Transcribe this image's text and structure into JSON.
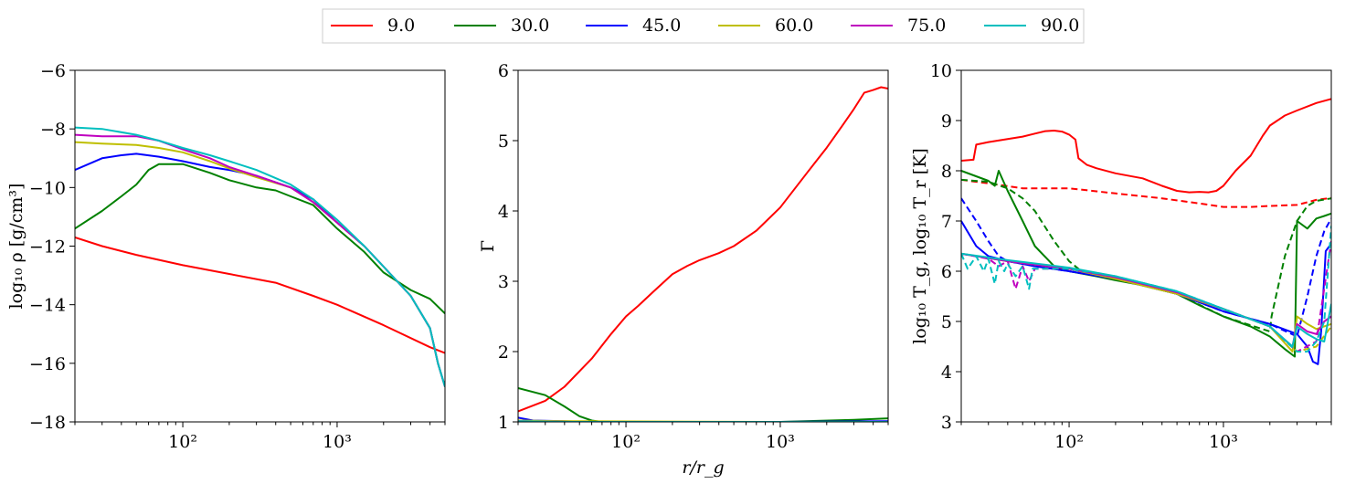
{
  "legend": {
    "placement": "top-center",
    "entries": [
      {
        "label": "9.0",
        "color": "#ff0000"
      },
      {
        "label": "30.0",
        "color": "#008000"
      },
      {
        "label": "45.0",
        "color": "#0000ff"
      },
      {
        "label": "60.0",
        "color": "#bfbf00"
      },
      {
        "label": "75.0",
        "color": "#bf00bf"
      },
      {
        "label": "90.0",
        "color": "#00bfbf"
      }
    ]
  },
  "chart_data": [
    {
      "type": "line",
      "xlabel": "",
      "ylabel": "log₁₀ ρ [g/cm³]",
      "xscale": "log",
      "xlim": [
        20,
        5000
      ],
      "ylim": [
        -18,
        -6
      ],
      "xticks": [
        {
          "value": 100,
          "label": "10²"
        },
        {
          "value": 1000,
          "label": "10³"
        }
      ],
      "yticks": [
        -18,
        -16,
        -14,
        -12,
        -10,
        -8,
        -6
      ],
      "ytick_labels": [
        "−18",
        "−16",
        "−14",
        "−12",
        "−10",
        "−8",
        "−6"
      ],
      "grid": false,
      "series": [
        {
          "name": "9.0",
          "color": "#ff0000",
          "style": "solid",
          "x": [
            20,
            30,
            50,
            100,
            200,
            400,
            700,
            1000,
            2000,
            4000,
            5000
          ],
          "y": [
            -11.7,
            -12.0,
            -12.3,
            -12.65,
            -12.95,
            -13.25,
            -13.7,
            -14.0,
            -14.7,
            -15.45,
            -15.65
          ]
        },
        {
          "name": "30.0",
          "color": "#008000",
          "style": "solid",
          "x": [
            20,
            30,
            40,
            50,
            60,
            70,
            100,
            150,
            200,
            300,
            400,
            500,
            700,
            1000,
            1500,
            2000,
            3000,
            4000,
            5000
          ],
          "y": [
            -11.4,
            -10.8,
            -10.3,
            -9.9,
            -9.4,
            -9.2,
            -9.2,
            -9.5,
            -9.75,
            -10.0,
            -10.1,
            -10.3,
            -10.6,
            -11.4,
            -12.2,
            -12.9,
            -13.5,
            -13.8,
            -14.3
          ]
        },
        {
          "name": "45.0",
          "color": "#0000ff",
          "style": "solid",
          "x": [
            20,
            30,
            40,
            50,
            70,
            100,
            150,
            200,
            300,
            500,
            700,
            1000,
            1500,
            2000,
            3000,
            4000,
            4500,
            5000
          ],
          "y": [
            -9.4,
            -9.0,
            -8.9,
            -8.85,
            -8.95,
            -9.1,
            -9.3,
            -9.4,
            -9.6,
            -10.0,
            -10.4,
            -11.2,
            -12.0,
            -12.7,
            -13.7,
            -14.8,
            -16.0,
            -16.8
          ]
        },
        {
          "name": "60.0",
          "color": "#bfbf00",
          "style": "solid",
          "x": [
            20,
            30,
            50,
            70,
            100,
            150,
            200,
            300,
            500,
            700,
            1000,
            1500,
            2000,
            3000,
            4000,
            4500,
            5000
          ],
          "y": [
            -8.45,
            -8.5,
            -8.55,
            -8.65,
            -8.8,
            -9.1,
            -9.35,
            -9.65,
            -10.0,
            -10.5,
            -11.2,
            -12.0,
            -12.7,
            -13.7,
            -14.8,
            -16.0,
            -16.8
          ]
        },
        {
          "name": "75.0",
          "color": "#bf00bf",
          "style": "solid",
          "x": [
            20,
            30,
            50,
            70,
            100,
            150,
            200,
            300,
            500,
            700,
            1000,
            1500,
            2000,
            3000,
            4000,
            4500,
            5000
          ],
          "y": [
            -8.2,
            -8.25,
            -8.25,
            -8.4,
            -8.7,
            -9.0,
            -9.3,
            -9.6,
            -10.0,
            -10.5,
            -11.2,
            -12.0,
            -12.7,
            -13.7,
            -14.8,
            -16.0,
            -16.8
          ]
        },
        {
          "name": "90.0",
          "color": "#00bfbf",
          "style": "solid",
          "x": [
            20,
            30,
            50,
            70,
            100,
            150,
            200,
            300,
            500,
            700,
            1000,
            1500,
            2000,
            3000,
            4000,
            4500,
            5000
          ],
          "y": [
            -7.95,
            -8.0,
            -8.2,
            -8.4,
            -8.65,
            -8.9,
            -9.1,
            -9.4,
            -9.9,
            -10.4,
            -11.1,
            -12.0,
            -12.7,
            -13.7,
            -14.8,
            -16.0,
            -16.8
          ]
        }
      ]
    },
    {
      "type": "line",
      "xlabel": "r/r_g",
      "ylabel": "Γ",
      "xscale": "log",
      "xlim": [
        20,
        5000
      ],
      "ylim": [
        1,
        6
      ],
      "xticks": [
        {
          "value": 100,
          "label": "10²"
        },
        {
          "value": 1000,
          "label": "10³"
        }
      ],
      "yticks": [
        1,
        2,
        3,
        4,
        5,
        6
      ],
      "ytick_labels": [
        "1",
        "2",
        "3",
        "4",
        "5",
        "6"
      ],
      "grid": false,
      "series": [
        {
          "name": "9.0",
          "color": "#ff0000",
          "style": "solid",
          "x": [
            20,
            30,
            40,
            60,
            80,
            100,
            120,
            150,
            200,
            250,
            300,
            400,
            500,
            700,
            1000,
            1500,
            2000,
            2500,
            3000,
            3500,
            4000,
            4500,
            5000
          ],
          "y": [
            1.15,
            1.3,
            1.5,
            1.9,
            2.25,
            2.5,
            2.65,
            2.85,
            3.1,
            3.22,
            3.3,
            3.4,
            3.5,
            3.72,
            4.05,
            4.55,
            4.9,
            5.2,
            5.45,
            5.68,
            5.72,
            5.76,
            5.74
          ]
        },
        {
          "name": "30.0",
          "color": "#008000",
          "style": "solid",
          "x": [
            20,
            30,
            40,
            50,
            60,
            70,
            100,
            1000,
            3000,
            5000
          ],
          "y": [
            1.48,
            1.38,
            1.22,
            1.08,
            1.02,
            1.0,
            1.0,
            1.0,
            1.03,
            1.05
          ]
        },
        {
          "name": "45.0",
          "color": "#0000ff",
          "style": "solid",
          "x": [
            20,
            25,
            40,
            60,
            1000,
            5000
          ],
          "y": [
            1.06,
            1.02,
            1.01,
            1.0,
            1.0,
            1.01
          ]
        },
        {
          "name": "60.0",
          "color": "#bfbf00",
          "style": "solid",
          "x": [
            20,
            40,
            1000,
            5000
          ],
          "y": [
            1.02,
            1.01,
            1.0,
            1.0
          ]
        },
        {
          "name": "75.0",
          "color": "#bf00bf",
          "style": "solid",
          "x": [
            20,
            40,
            1000,
            5000
          ],
          "y": [
            1.01,
            1.0,
            1.0,
            1.0
          ]
        },
        {
          "name": "90.0",
          "color": "#00bfbf",
          "style": "solid",
          "x": [
            20,
            40,
            1000,
            5000
          ],
          "y": [
            1.01,
            1.0,
            1.0,
            1.0
          ]
        }
      ]
    },
    {
      "type": "line",
      "xlabel": "",
      "ylabel": "log₁₀ T_g, log₁₀ T_r [K]",
      "xscale": "log",
      "xlim": [
        20,
        5000
      ],
      "ylim": [
        3,
        10
      ],
      "xticks": [
        {
          "value": 100,
          "label": "10²"
        },
        {
          "value": 1000,
          "label": "10³"
        }
      ],
      "yticks": [
        3,
        4,
        5,
        6,
        7,
        8,
        9,
        10
      ],
      "ytick_labels": [
        "3",
        "4",
        "5",
        "6",
        "7",
        "8",
        "9",
        "10"
      ],
      "grid": false,
      "series": [
        {
          "name": "9.0",
          "color": "#ff0000",
          "style": "solid",
          "x": [
            20,
            24,
            25,
            30,
            40,
            50,
            60,
            70,
            80,
            90,
            100,
            110,
            115,
            130,
            150,
            200,
            300,
            400,
            500,
            600,
            700,
            800,
            900,
            1000,
            1200,
            1500,
            1800,
            1900,
            2000,
            2500,
            3000,
            4000,
            5000
          ],
          "y": [
            8.2,
            8.22,
            8.52,
            8.57,
            8.63,
            8.68,
            8.74,
            8.79,
            8.8,
            8.78,
            8.72,
            8.62,
            8.25,
            8.12,
            8.05,
            7.95,
            7.85,
            7.7,
            7.6,
            7.57,
            7.58,
            7.57,
            7.6,
            7.7,
            8.0,
            8.3,
            8.7,
            8.8,
            8.9,
            9.1,
            9.2,
            9.35,
            9.43
          ]
        },
        {
          "name": "9.0 (T_r)",
          "color": "#ff0000",
          "style": "dashed",
          "x": [
            20,
            30,
            50,
            100,
            200,
            400,
            700,
            1000,
            1500,
            2000,
            3000,
            4000,
            5000
          ],
          "y": [
            7.82,
            7.75,
            7.65,
            7.65,
            7.55,
            7.45,
            7.35,
            7.28,
            7.28,
            7.3,
            7.32,
            7.42,
            7.46
          ]
        },
        {
          "name": "30.0",
          "color": "#008000",
          "style": "solid",
          "x": [
            20,
            30,
            33,
            35,
            40,
            50,
            60,
            80,
            100,
            150,
            200,
            300,
            500,
            700,
            1000,
            1500,
            2000,
            2500,
            2900,
            3000,
            3500,
            4000,
            4500,
            5000
          ],
          "y": [
            8.0,
            7.8,
            7.7,
            8.0,
            7.6,
            7.0,
            6.5,
            6.1,
            6.0,
            5.9,
            5.82,
            5.72,
            5.55,
            5.32,
            5.1,
            4.9,
            4.7,
            4.45,
            4.3,
            7.0,
            6.85,
            7.05,
            7.1,
            7.15
          ]
        },
        {
          "name": "30.0 (T_r)",
          "color": "#008000",
          "style": "dashed",
          "x": [
            20,
            30,
            40,
            50,
            60,
            80,
            100,
            120,
            150,
            200,
            500,
            1000,
            2000,
            2050,
            2500,
            3000,
            3500,
            4000,
            5000
          ],
          "y": [
            7.82,
            7.78,
            7.65,
            7.45,
            7.2,
            6.6,
            6.2,
            6.0,
            5.92,
            5.85,
            5.55,
            5.1,
            4.8,
            5.1,
            6.3,
            7.0,
            7.3,
            7.4,
            7.45
          ]
        },
        {
          "name": "45.0",
          "color": "#0000ff",
          "style": "solid",
          "x": [
            20,
            25,
            30,
            40,
            60,
            100,
            200,
            500,
            1000,
            2000,
            3000,
            3500,
            3800,
            4100,
            4300,
            4600,
            5000
          ],
          "y": [
            7.0,
            6.5,
            6.3,
            6.2,
            6.1,
            6.0,
            5.85,
            5.55,
            5.2,
            4.95,
            4.75,
            4.5,
            4.2,
            4.15,
            4.8,
            6.4,
            6.55
          ]
        },
        {
          "name": "45.0 (T_r)",
          "color": "#0000ff",
          "style": "dashed",
          "x": [
            20,
            25,
            30,
            35,
            40,
            50,
            60,
            100,
            200,
            500,
            1000,
            2000,
            3000,
            3500,
            4000,
            4500,
            5000
          ],
          "y": [
            7.45,
            7.0,
            6.6,
            6.3,
            6.2,
            6.15,
            6.1,
            6.0,
            5.85,
            5.55,
            5.2,
            4.95,
            4.7,
            5.5,
            6.3,
            6.8,
            7.05
          ]
        },
        {
          "name": "60.0",
          "color": "#bfbf00",
          "style": "solid",
          "x": [
            20,
            40,
            100,
            200,
            500,
            1000,
            2000,
            2800,
            3000,
            3500,
            4000,
            5000
          ],
          "y": [
            6.35,
            6.2,
            6.05,
            5.85,
            5.55,
            5.25,
            4.9,
            4.4,
            5.1,
            4.95,
            4.85,
            4.95
          ]
        },
        {
          "name": "60.0 (T_r)",
          "color": "#bfbf00",
          "style": "dashed",
          "x": [
            20,
            40,
            100,
            200,
            500,
            1000,
            2000,
            3000,
            4000,
            5000
          ],
          "y": [
            6.35,
            6.2,
            6.05,
            5.85,
            5.55,
            5.25,
            4.9,
            4.4,
            4.5,
            4.9
          ]
        },
        {
          "name": "75.0",
          "color": "#bf00bf",
          "style": "solid",
          "x": [
            20,
            40,
            100,
            200,
            500,
            1000,
            2000,
            2800,
            3000,
            3500,
            4000,
            4500,
            5000
          ],
          "y": [
            6.35,
            6.2,
            6.05,
            5.88,
            5.58,
            5.25,
            4.9,
            4.5,
            4.95,
            4.8,
            4.75,
            5.0,
            5.1
          ]
        },
        {
          "name": "75.0 (T_r)",
          "color": "#bf00bf",
          "style": "dashed",
          "x": [
            20,
            30,
            35,
            40,
            45,
            50,
            55,
            60,
            100,
            200,
            500,
            1000,
            2000,
            3000,
            4000,
            5000
          ],
          "y": [
            6.35,
            6.25,
            6.1,
            6.2,
            5.65,
            6.1,
            5.8,
            6.05,
            6.05,
            5.88,
            5.58,
            5.25,
            4.9,
            4.4,
            4.6,
            6.6
          ]
        },
        {
          "name": "90.0",
          "color": "#00bfbf",
          "style": "solid",
          "x": [
            20,
            40,
            100,
            200,
            500,
            1000,
            2000,
            2800,
            3000,
            3500,
            4000,
            4500,
            5000
          ],
          "y": [
            6.35,
            6.22,
            6.07,
            5.9,
            5.6,
            5.25,
            4.9,
            4.5,
            4.9,
            4.75,
            4.65,
            4.6,
            5.35
          ]
        },
        {
          "name": "90.0 (T_r)",
          "color": "#00bfbf",
          "style": "dashed",
          "x": [
            20,
            22,
            25,
            28,
            30,
            33,
            35,
            38,
            40,
            45,
            50,
            55,
            58,
            60,
            100,
            200,
            500,
            1000,
            2000,
            3000,
            3500,
            4000,
            4500,
            5000
          ],
          "y": [
            6.35,
            6.05,
            6.3,
            6.0,
            6.25,
            5.75,
            6.2,
            6.0,
            6.15,
            5.9,
            6.1,
            5.65,
            6.05,
            6.05,
            6.05,
            5.9,
            5.6,
            5.25,
            4.9,
            4.4,
            4.4,
            4.6,
            5.0,
            6.9
          ]
        }
      ]
    }
  ]
}
